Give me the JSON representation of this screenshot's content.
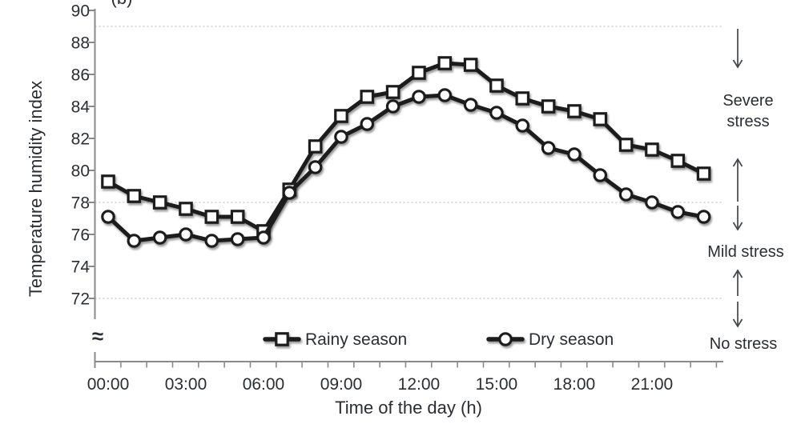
{
  "panel_label": "(b)",
  "colors": {
    "series_line": "#1a1a1a",
    "marker_fill": "#ffffff",
    "axis": "#8a8a8a",
    "grid": "#c4c4c4",
    "text": "#2a2e33",
    "arrow": "#43464a"
  },
  "chart_data": {
    "type": "line",
    "title": "",
    "xlabel": "Time of the day (h)",
    "ylabel": "Temperature humidity index",
    "x_hours": [
      0,
      1,
      2,
      3,
      4,
      5,
      6,
      7,
      8,
      9,
      10,
      11,
      12,
      13,
      14,
      15,
      16,
      17,
      18,
      19,
      20,
      21,
      22,
      23
    ],
    "x_tick_labels": [
      "00:00",
      "03:00",
      "06:00",
      "09:00",
      "12:00",
      "15:00",
      "18:00",
      "21:00"
    ],
    "x_tick_hours": [
      0,
      3,
      6,
      9,
      12,
      15,
      18,
      21
    ],
    "y_ticks": [
      90,
      88,
      86,
      84,
      82,
      80,
      78,
      76,
      74,
      72
    ],
    "ylim": [
      72,
      90
    ],
    "axis_break_symbol": "≈",
    "dashed_gridlines": [
      89,
      78,
      72
    ],
    "grid": "horizontal-dashed-only",
    "legend_position": "bottom-inside",
    "series": [
      {
        "name": "Rainy season",
        "marker": "square",
        "values": [
          79.3,
          78.4,
          78.0,
          77.6,
          77.1,
          77.1,
          76.2,
          78.8,
          81.5,
          83.4,
          84.6,
          84.9,
          86.1,
          86.7,
          86.6,
          85.3,
          84.5,
          84.0,
          83.7,
          83.2,
          81.6,
          81.3,
          80.6,
          79.8
        ]
      },
      {
        "name": "Dry season",
        "marker": "circle",
        "values": [
          77.1,
          75.6,
          75.8,
          76.0,
          75.6,
          75.7,
          75.8,
          78.6,
          80.2,
          82.1,
          82.9,
          84.0,
          84.6,
          84.7,
          84.1,
          83.6,
          82.8,
          81.4,
          81.0,
          79.7,
          78.5,
          78.0,
          77.4,
          77.1
        ]
      }
    ],
    "stress_zones": [
      {
        "label": "Severe stress",
        "label_lines": [
          "Severe",
          "stress"
        ],
        "upper": 89,
        "lower": 78
      },
      {
        "label": "Mild stress",
        "label_lines": [
          "Mild stress"
        ],
        "upper": 78,
        "lower": 72
      },
      {
        "label": "No stress",
        "label_lines": [
          "No stress"
        ],
        "upper": 72,
        "lower": null
      }
    ]
  },
  "legend": {
    "items": [
      {
        "label": "Rainy season",
        "marker": "square"
      },
      {
        "label": "Dry season",
        "marker": "circle"
      }
    ]
  }
}
